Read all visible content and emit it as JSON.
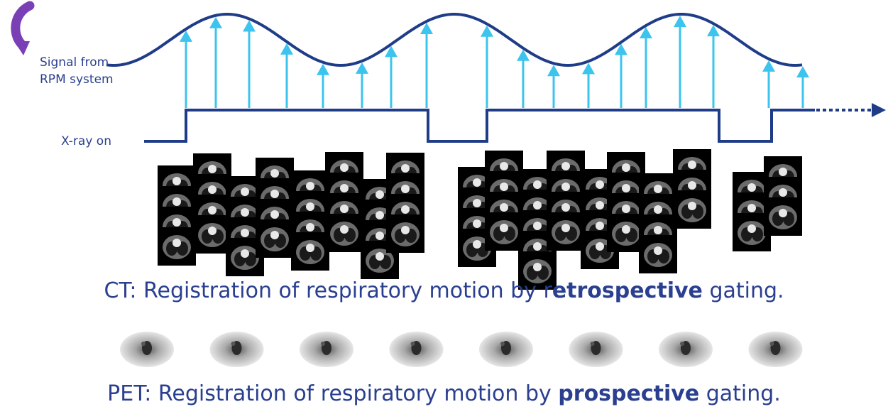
{
  "labels": {
    "signal_line1": "Signal from",
    "signal_line2": "RPM system",
    "xray": "X-ray on"
  },
  "ct_caption": {
    "prefix": "CT:  Registration of respiratory motion by r",
    "bold": "etrospective",
    "suffix": " gating."
  },
  "pet_caption": {
    "prefix": "PET: Registration of respiratory motion by ",
    "bold": "prospective",
    "suffix": " gating."
  },
  "colors": {
    "signal": "#1f3c88",
    "arrows": "#3cc4ee",
    "text": "#2a3f8f",
    "curved_arrow": "#7b3fb5"
  }
}
